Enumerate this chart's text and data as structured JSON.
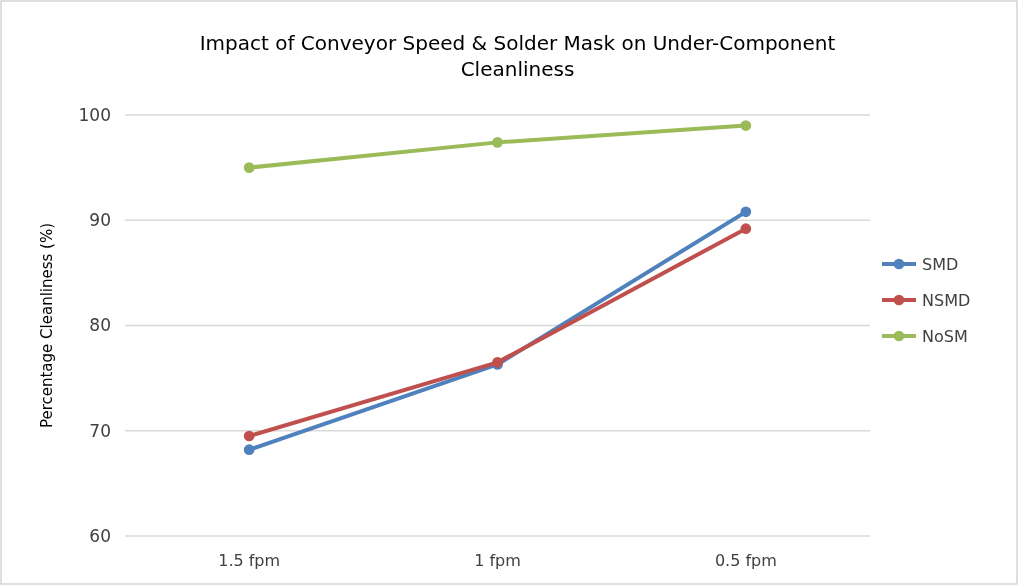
{
  "chart_data": {
    "type": "line",
    "title": "Impact of Conveyor Speed & Solder Mask on Under-Component Cleanliness",
    "ylabel": "Percentage Cleanliness (%)",
    "categories": [
      "1.5 fpm",
      "1 fpm",
      "0.5 fpm"
    ],
    "series": [
      {
        "name": "SMD",
        "color": "#4f81bd",
        "values": [
          68.2,
          76.3,
          90.8
        ]
      },
      {
        "name": "NSMD",
        "color": "#c0504d",
        "values": [
          69.5,
          76.5,
          89.2
        ]
      },
      {
        "name": "NoSM",
        "color": "#9bbb59",
        "values": [
          95.0,
          97.4,
          99.0
        ]
      }
    ],
    "ylim": [
      60,
      100
    ],
    "yticks": [
      60,
      70,
      80,
      90,
      100
    ],
    "grid": "y",
    "legend": "right",
    "marker": "circle",
    "line_style": "solid"
  }
}
